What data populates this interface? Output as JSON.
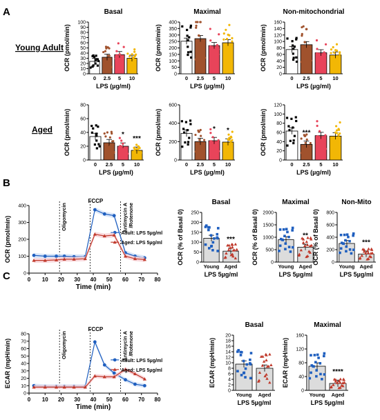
{
  "panels": {
    "A": "A",
    "B": "B",
    "C": "C"
  },
  "row_labels": {
    "young": "Young Adult",
    "aged": "Aged"
  },
  "colors": {
    "c0": "#ffffff",
    "c25": "#a0522d",
    "c5": "#e8445a",
    "c10": "#f2b705",
    "young": "#1f5fbf",
    "aged": "#c0392b",
    "shade_adult": "#cfe0f7",
    "shade_aged": "#f7cfd4"
  },
  "chart_data": [
    {
      "id": "A_young_basal",
      "type": "bar",
      "title": "Basal",
      "xlabel": "LPS (µg/ml)",
      "ylabel": "OCR (pmol/min)",
      "categories": [
        "0",
        "2.5",
        "5",
        "10"
      ],
      "values": [
        24,
        32,
        37,
        30
      ],
      "ylim": [
        0,
        100
      ],
      "yticks": [
        0,
        10,
        20,
        30,
        40,
        50,
        60,
        70,
        80,
        90,
        100
      ],
      "sig": [
        "",
        "",
        "",
        ""
      ]
    },
    {
      "id": "A_young_maximal",
      "type": "bar",
      "title": "Maximal",
      "xlabel": "LPS (µg/ml)",
      "ylabel": "OCR (pmol/min)",
      "categories": [
        "0",
        "2.5",
        "5",
        "10"
      ],
      "values": [
        252,
        272,
        218,
        240
      ],
      "ylim": [
        0,
        400
      ],
      "yticks": [
        0,
        50,
        100,
        150,
        200,
        250,
        300,
        350,
        400
      ],
      "sig": [
        "",
        "",
        "",
        ""
      ]
    },
    {
      "id": "A_young_nonmito",
      "type": "bar",
      "title": "Non-mitochondrial",
      "xlabel": "LPS (µg/ml)",
      "ylabel": "OCR (pmol/min)",
      "categories": [
        "0",
        "2.5",
        "5",
        "10"
      ],
      "values": [
        75,
        90,
        65,
        58
      ],
      "ylim": [
        0,
        160
      ],
      "yticks": [
        0,
        20,
        40,
        60,
        80,
        100,
        120,
        140,
        160
      ],
      "sig": [
        "",
        "",
        "",
        ""
      ]
    },
    {
      "id": "A_aged_basal",
      "type": "bar",
      "title": "",
      "xlabel": "LPS (µg/ml)",
      "ylabel": "OCR (pmol/min)",
      "categories": [
        "0",
        "2.5",
        "5",
        "10"
      ],
      "values": [
        34,
        25,
        20,
        14
      ],
      "ylim": [
        0,
        80
      ],
      "yticks": [
        0,
        20,
        40,
        60,
        80
      ],
      "sig": [
        "",
        "",
        "*",
        "***"
      ]
    },
    {
      "id": "A_aged_maximal",
      "type": "bar",
      "title": "",
      "xlabel": "LPS (µg/ml)",
      "ylabel": "OCR (pmol/min)",
      "categories": [
        "0",
        "2.5",
        "5",
        "10"
      ],
      "values": [
        290,
        200,
        210,
        195
      ],
      "ylim": [
        0,
        600
      ],
      "yticks": [
        0,
        200,
        400,
        600
      ],
      "sig": [
        "",
        "",
        "*",
        "*"
      ]
    },
    {
      "id": "A_aged_nonmito",
      "type": "bar",
      "title": "",
      "xlabel": "LPS (µg/ml)",
      "ylabel": "OCR (pmol/min)",
      "categories": [
        "0",
        "2.5",
        "5",
        "10"
      ],
      "values": [
        63,
        34,
        53,
        52
      ],
      "ylim": [
        0,
        120
      ],
      "yticks": [
        0,
        20,
        40,
        60,
        80,
        100,
        120
      ],
      "sig": [
        "",
        "***",
        "",
        ""
      ]
    },
    {
      "id": "B_trace",
      "type": "line",
      "xlabel": "Time (min)",
      "ylabel": "OCR (pmol/min)",
      "xlim": [
        0,
        80
      ],
      "ylim": [
        0,
        400
      ],
      "xticks": [
        0,
        10,
        20,
        30,
        40,
        50,
        60,
        70,
        80
      ],
      "yticks": [
        0,
        100,
        200,
        300,
        400
      ],
      "annotations": [
        {
          "label": "Oligomycin",
          "x": 19
        },
        {
          "label": "FCCP",
          "x": 38
        },
        {
          "label": "Antimycin A\n/Rotenone",
          "x": 57
        }
      ],
      "series": [
        {
          "name": "Adult: LPS 5µg/ml",
          "x": [
            3,
            10,
            17,
            22,
            28,
            35,
            41,
            47,
            53,
            60,
            66,
            72
          ],
          "y": [
            105,
            100,
            100,
            100,
            97,
            97,
            375,
            350,
            340,
            120,
            100,
            90
          ]
        },
        {
          "name": "Aged: LPS 5µg/ml",
          "x": [
            3,
            10,
            17,
            22,
            28,
            35,
            41,
            47,
            53,
            60,
            66,
            72
          ],
          "y": [
            75,
            75,
            78,
            82,
            82,
            85,
            230,
            220,
            225,
            100,
            85,
            80
          ]
        }
      ]
    },
    {
      "id": "B_basal",
      "type": "bar",
      "title": "Basal",
      "ylabel": "OCR (% of Basal 0)",
      "xlabel": "LPS 5µg/ml",
      "categories": [
        "Young",
        "Aged"
      ],
      "values": [
        120,
        55
      ],
      "ylim": [
        0,
        250
      ],
      "yticks": [
        0,
        50,
        100,
        150,
        200,
        250
      ],
      "sig": [
        "",
        "***"
      ]
    },
    {
      "id": "B_maximal",
      "type": "bar",
      "title": "Maximal",
      "ylabel": "OCR (% of Basal 0)",
      "xlabel": "LPS 5µg/ml",
      "categories": [
        "Young",
        "Aged"
      ],
      "values": [
        900,
        600
      ],
      "ylim": [
        0,
        2000
      ],
      "yticks": [
        0,
        500,
        1000,
        1500,
        2000
      ],
      "sig": [
        "",
        "**"
      ]
    },
    {
      "id": "B_nonmito",
      "type": "bar",
      "title": "Non-Mito",
      "ylabel": "OCR (% of Basal 0)",
      "xlabel": "LPS 5µg/ml",
      "categories": [
        "Young",
        "Aged"
      ],
      "values": [
        300,
        130
      ],
      "ylim": [
        0,
        800
      ],
      "yticks": [
        0,
        200,
        400,
        600,
        800
      ],
      "sig": [
        "",
        "***"
      ]
    },
    {
      "id": "C_trace",
      "type": "line",
      "xlabel": "Time (min)",
      "ylabel": "ECAR (mpH/min)",
      "xlim": [
        0,
        80
      ],
      "ylim": [
        0,
        80
      ],
      "xticks": [
        0,
        10,
        20,
        30,
        40,
        50,
        60,
        70,
        80
      ],
      "yticks": [
        0,
        10,
        20,
        30,
        40,
        50,
        60,
        70,
        80
      ],
      "annotations": [
        {
          "label": "Oligomycin",
          "x": 19
        },
        {
          "label": "FCCP",
          "x": 38
        },
        {
          "label": "Antimycin A\n/Rotenone",
          "x": 57
        }
      ],
      "series": [
        {
          "name": "Adult: LPS 5µg/ml",
          "x": [
            3,
            10,
            17,
            22,
            28,
            35,
            41,
            47,
            53,
            60,
            66,
            72
          ],
          "y": [
            10,
            9,
            9,
            9,
            9,
            9,
            69,
            38,
            27,
            18,
            12,
            10
          ]
        },
        {
          "name": "Aged: LPS 5µg/ml",
          "x": [
            3,
            10,
            17,
            22,
            28,
            35,
            41,
            47,
            53,
            60,
            66,
            72
          ],
          "y": [
            8,
            8,
            8,
            8,
            8,
            8,
            23,
            22,
            22,
            32,
            26,
            19
          ]
        }
      ]
    },
    {
      "id": "C_basal",
      "type": "bar",
      "title": "Basal",
      "ylabel": "ECAR (mpH/min)",
      "xlabel": "LPS 5µg/ml",
      "categories": [
        "Young",
        "Aged"
      ],
      "values": [
        9.5,
        8
      ],
      "ylim": [
        0,
        20
      ],
      "yticks": [
        0,
        2,
        4,
        6,
        8,
        10,
        12,
        14,
        16,
        18,
        20
      ],
      "sig": [
        "",
        ""
      ]
    },
    {
      "id": "C_maximal",
      "type": "bar",
      "title": "Maximal",
      "ylabel": "ECAR (mpH/min)",
      "xlabel": "LPS 5µg/ml",
      "categories": [
        "Young",
        "Aged"
      ],
      "values": [
        70,
        20
      ],
      "ylim": [
        0,
        160
      ],
      "yticks": [
        0,
        40,
        80,
        120,
        160
      ],
      "sig": [
        "",
        "****"
      ]
    }
  ]
}
